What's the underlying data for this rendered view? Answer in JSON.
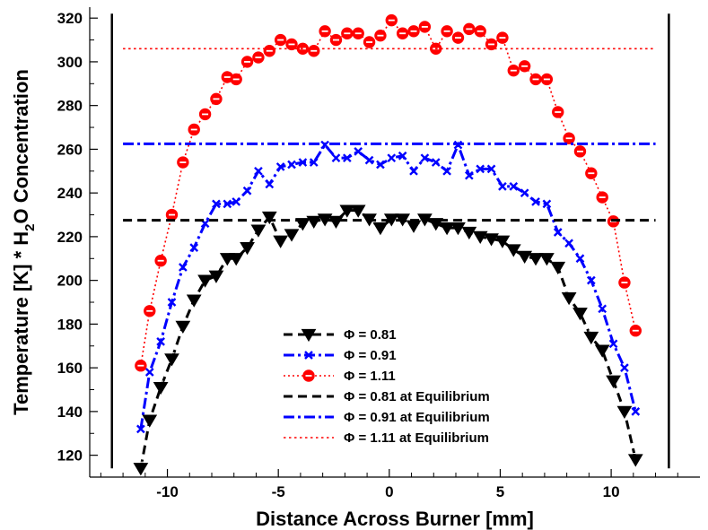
{
  "chart_data": {
    "type": "line",
    "xlabel": "Distance Across Burner [mm]",
    "ylabel_parts": [
      "Temperature [K] * H",
      "2",
      "O Concentration"
    ],
    "xlim": [
      -13.5,
      14
    ],
    "ylim": [
      110,
      325
    ],
    "xticks": [
      -10,
      -5,
      0,
      5,
      10
    ],
    "yticks": [
      120,
      140,
      160,
      180,
      200,
      220,
      240,
      260,
      280,
      300,
      320
    ],
    "grid": false,
    "legend_position": "lower-center",
    "boundary_lines_x": [
      -12.5,
      12.6
    ],
    "boundary_lines_y": [
      114,
      322
    ],
    "series": [
      {
        "name": "Φ = 0.81",
        "color": "#000000",
        "marker": "triangle-down",
        "line_style": "dashed",
        "x": [
          -11.2,
          -10.8,
          -10.3,
          -9.8,
          -9.3,
          -8.8,
          -8.3,
          -7.8,
          -7.3,
          -6.9,
          -6.4,
          -5.9,
          -5.4,
          -4.9,
          -4.4,
          -3.9,
          -3.4,
          -2.9,
          -2.4,
          -1.9,
          -1.4,
          -0.9,
          -0.4,
          0.1,
          0.6,
          1.1,
          1.6,
          2.1,
          2.6,
          3.1,
          3.6,
          4.1,
          4.6,
          5.1,
          5.6,
          6.1,
          6.6,
          7.1,
          7.6,
          8.1,
          8.6,
          9.1,
          9.6,
          10.1,
          10.6,
          11.1
        ],
        "values": [
          114,
          136,
          151,
          164,
          179,
          191,
          200,
          202,
          210,
          210,
          215,
          223,
          229,
          218,
          221,
          226,
          227,
          228,
          227,
          232,
          232,
          228,
          224,
          228,
          228,
          225,
          228,
          226,
          224,
          224,
          222,
          220,
          219,
          218,
          214,
          211,
          210,
          210,
          206,
          192,
          185,
          174,
          168,
          154,
          140,
          118
        ]
      },
      {
        "name": "Φ = 0.91",
        "color": "#0000ff",
        "marker": "x",
        "line_style": "dash-dot",
        "x": [
          -11.2,
          -10.8,
          -10.3,
          -9.8,
          -9.3,
          -8.8,
          -8.3,
          -7.8,
          -7.3,
          -6.9,
          -6.4,
          -5.9,
          -5.4,
          -4.9,
          -4.4,
          -3.9,
          -3.4,
          -2.9,
          -2.4,
          -1.9,
          -1.4,
          -0.9,
          -0.4,
          0.1,
          0.6,
          1.1,
          1.6,
          2.1,
          2.6,
          3.1,
          3.6,
          4.1,
          4.6,
          5.1,
          5.6,
          6.1,
          6.6,
          7.1,
          7.6,
          8.1,
          8.6,
          9.1,
          9.6,
          10.1,
          10.6,
          11.1
        ],
        "values": [
          132,
          158,
          172,
          190,
          206,
          215,
          226,
          235,
          235,
          236,
          241,
          250,
          244,
          252,
          253,
          254,
          254,
          262,
          256,
          256,
          259,
          255,
          253,
          256,
          257,
          250,
          256,
          254,
          250,
          262,
          248,
          251,
          251,
          243,
          243,
          240,
          236,
          235,
          222,
          217,
          210,
          200,
          187,
          171,
          160,
          140
        ]
      },
      {
        "name": "Φ = 1.11",
        "color": "#ff0000",
        "marker": "circle-dot",
        "line_style": "dotted",
        "x": [
          -11.2,
          -10.8,
          -10.3,
          -9.8,
          -9.3,
          -8.8,
          -8.3,
          -7.8,
          -7.3,
          -6.9,
          -6.4,
          -5.9,
          -5.4,
          -4.9,
          -4.4,
          -3.9,
          -3.4,
          -2.9,
          -2.4,
          -1.9,
          -1.4,
          -0.9,
          -0.4,
          0.1,
          0.6,
          1.1,
          1.6,
          2.1,
          2.6,
          3.1,
          3.6,
          4.1,
          4.6,
          5.1,
          5.6,
          6.1,
          6.6,
          7.1,
          7.6,
          8.1,
          8.6,
          9.1,
          9.6,
          10.1,
          10.6,
          11.1
        ],
        "values": [
          161,
          186,
          209,
          230,
          254,
          269,
          276,
          283,
          293,
          292,
          300,
          302,
          305,
          310,
          308,
          306,
          305,
          314,
          310,
          313,
          313,
          309,
          312,
          319,
          313,
          314,
          316,
          306,
          314,
          311,
          315,
          314,
          308,
          311,
          296,
          298,
          292,
          292,
          277,
          265,
          259,
          249,
          238,
          227,
          199,
          177
        ]
      },
      {
        "name": "Φ = 0.81 at Equilibrium",
        "color": "#000000",
        "line_style": "dashed",
        "x": [
          -12.0,
          12.0
        ],
        "values": [
          227.5,
          227.5
        ]
      },
      {
        "name": "Φ = 0.91 at Equilibrium",
        "color": "#0000ff",
        "line_style": "dash-dot",
        "x": [
          -12.0,
          12.0
        ],
        "values": [
          262.5,
          262.5
        ]
      },
      {
        "name": "Φ = 1.11 at Equilibrium",
        "color": "#ff0000",
        "line_style": "dense-dotted",
        "x": [
          -12.0,
          12.0
        ],
        "values": [
          306,
          306
        ]
      }
    ]
  }
}
